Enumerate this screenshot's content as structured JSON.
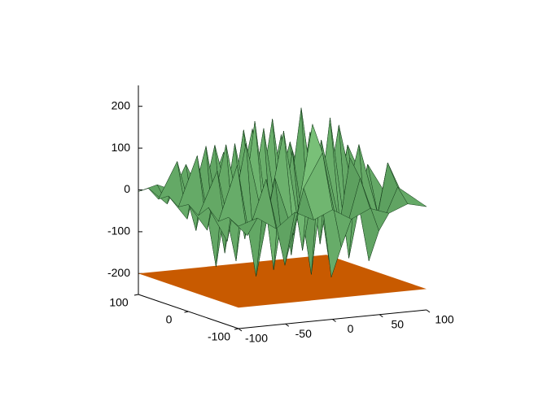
{
  "chart_data": {
    "type": "surface3d",
    "x": [
      -100,
      -80,
      -60,
      -40,
      -20,
      0,
      20,
      40,
      60,
      80,
      100
    ],
    "y": [
      -100,
      -80,
      -60,
      -40,
      -20,
      0,
      20,
      40,
      60,
      80,
      100
    ],
    "z": [
      [
        -5,
        10,
        -20,
        15,
        -8,
        12,
        -15,
        6,
        -10,
        8,
        -3
      ],
      [
        8,
        -40,
        90,
        -120,
        60,
        140,
        -90,
        70,
        -60,
        40,
        5
      ],
      [
        -10,
        120,
        -150,
        80,
        -60,
        200,
        -170,
        110,
        -140,
        90,
        -12
      ],
      [
        15,
        -70,
        160,
        -50,
        180,
        -110,
        150,
        -60,
        130,
        -40,
        10
      ],
      [
        -12,
        90,
        -130,
        200,
        -160,
        120,
        -180,
        190,
        -150,
        70,
        -8
      ],
      [
        6,
        -60,
        140,
        -90,
        170,
        -130,
        210,
        -120,
        160,
        -50,
        12
      ],
      [
        -8,
        110,
        -160,
        130,
        -100,
        180,
        -150,
        140,
        -170,
        100,
        -6
      ],
      [
        10,
        -50,
        120,
        -140,
        150,
        -90,
        130,
        -110,
        90,
        -40,
        8
      ],
      [
        -6,
        80,
        -90,
        110,
        -70,
        140,
        -80,
        100,
        -60,
        50,
        -10
      ],
      [
        12,
        -30,
        60,
        -40,
        80,
        -50,
        70,
        -30,
        40,
        -20,
        5
      ],
      [
        -4,
        8,
        -12,
        10,
        -6,
        14,
        -9,
        7,
        -5,
        6,
        -2
      ]
    ],
    "plane_z": -200,
    "plane_color": "#c85a00",
    "color_low": "#1e5a28",
    "color_high": "#a6f2a0",
    "xlim": [
      -100,
      100
    ],
    "ylim": [
      -100,
      100
    ],
    "zlim": [
      -250,
      250
    ],
    "xticks": [
      -100,
      -50,
      0,
      50,
      100
    ],
    "yticks": [
      -100,
      0,
      100
    ],
    "zticks": [
      -200,
      -100,
      0,
      100,
      200
    ]
  }
}
